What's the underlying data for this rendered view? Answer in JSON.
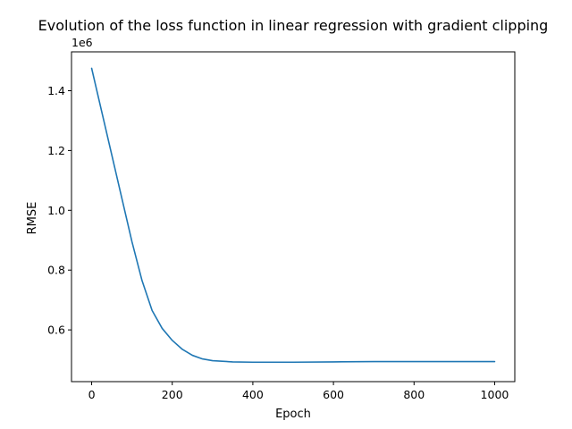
{
  "chart_data": {
    "type": "line",
    "title": "Evolution of the loss function in linear regression with gradient clipping",
    "xlabel": "Epoch",
    "ylabel": "RMSE",
    "y_offset_text": "1e6",
    "xlim": [
      -50,
      1050
    ],
    "ylim": [
      0.427,
      1.53
    ],
    "y_scale_note": "values in units of 1e6",
    "grid": false,
    "legend": "none",
    "line_color": "#1f77b4",
    "x_ticks": [
      {
        "value": 0,
        "label": "0"
      },
      {
        "value": 200,
        "label": "200"
      },
      {
        "value": 400,
        "label": "400"
      },
      {
        "value": 600,
        "label": "600"
      },
      {
        "value": 800,
        "label": "800"
      },
      {
        "value": 1000,
        "label": "1000"
      }
    ],
    "y_ticks": [
      {
        "value": 0.6,
        "label": "0.6"
      },
      {
        "value": 0.8,
        "label": "0.8"
      },
      {
        "value": 1.0,
        "label": "1.0"
      },
      {
        "value": 1.2,
        "label": "1.2"
      },
      {
        "value": 1.4,
        "label": "1.4"
      }
    ],
    "series": [
      {
        "x": [
          0,
          25,
          50,
          75,
          100,
          125,
          150,
          175,
          200,
          225,
          250,
          275,
          300,
          350,
          400,
          450,
          500,
          600,
          700,
          800,
          900,
          1000
        ],
        "y": [
          1.475,
          1.33,
          1.185,
          1.04,
          0.895,
          0.765,
          0.665,
          0.605,
          0.565,
          0.535,
          0.515,
          0.503,
          0.497,
          0.493,
          0.492,
          0.492,
          0.492,
          0.493,
          0.494,
          0.494,
          0.494,
          0.494
        ]
      }
    ]
  }
}
